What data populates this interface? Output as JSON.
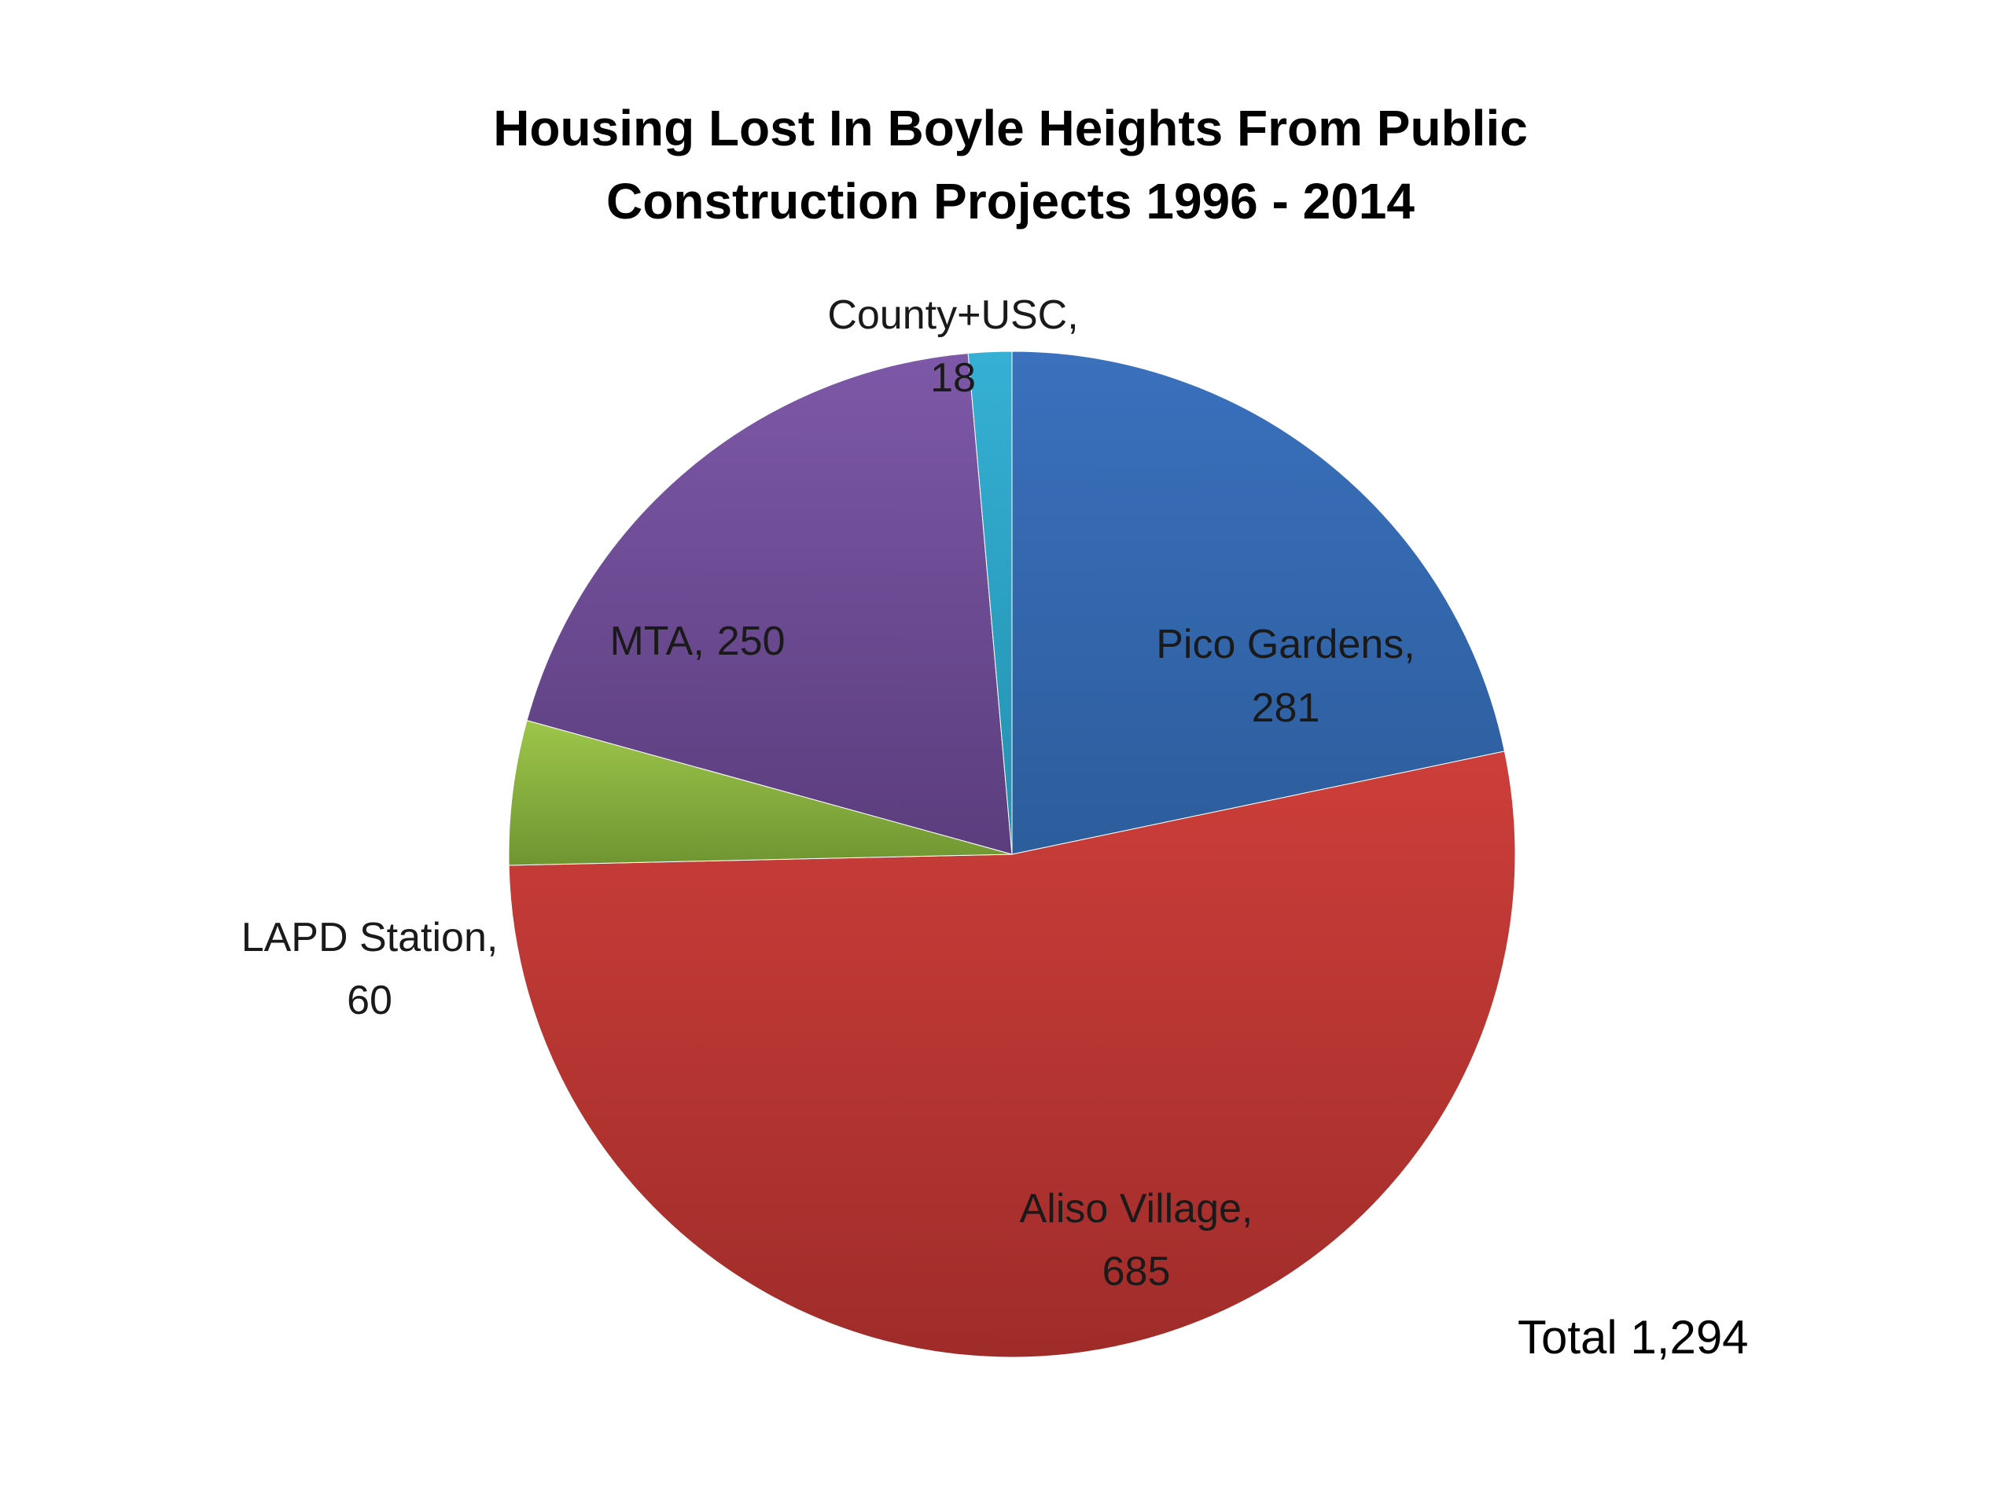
{
  "chart_data": {
    "type": "pie",
    "title_lines": [
      "Housing Lost In Boyle Heights From Public",
      "Construction Projects 1996 - 2014"
    ],
    "slices": [
      {
        "label": "Pico Gardens,",
        "value": 281,
        "value_text": "281",
        "color": "#3a70bd",
        "color_dark": "#2c5d9c"
      },
      {
        "label": "Aliso Village,",
        "value": 685,
        "value_text": "685",
        "color": "#cd3e3a",
        "color_dark": "#9f2c2a"
      },
      {
        "label": "LAPD Station,",
        "value": 60,
        "value_text": "60",
        "color": "#9dc64a",
        "color_dark": "#6f9532"
      },
      {
        "label": "MTA,",
        "value": 250,
        "value_text": "250",
        "color": "#7d58a8",
        "color_dark": "#5b3d7d"
      },
      {
        "label": "County+USC,",
        "value": 18,
        "value_text": "18",
        "color": "#35b0d4",
        "color_dark": "#2390b0"
      }
    ],
    "start_direction": "12 o'clock",
    "direction": "clockwise",
    "legend": "none",
    "total_text": "Total 1,294"
  }
}
